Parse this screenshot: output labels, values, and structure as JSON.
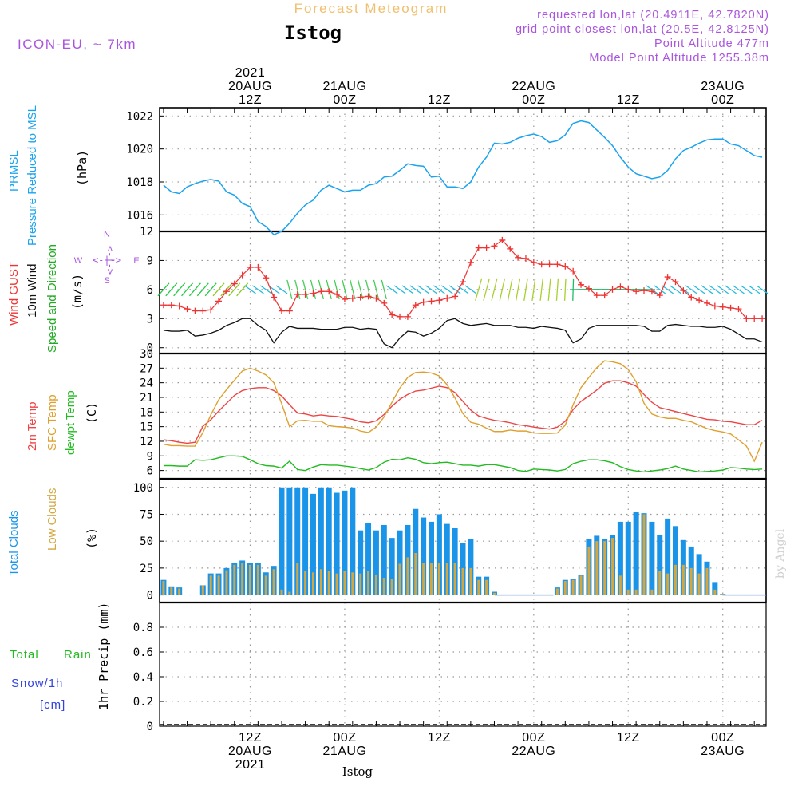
{
  "header": {
    "super_title": "Forecast Meteogram",
    "station": "Istog",
    "model": "ICON-EU, ~ 7km",
    "info_lines": [
      "requested lon,lat (20.4911E, 42.7820N)",
      "grid point closest lon,lat (20.5E, 42.8125N)",
      "Point Altitude 477m",
      "Model Point Altitude 1255.38m"
    ],
    "footer_station": "Istog",
    "credit": "by Angel"
  },
  "colors": {
    "pressure": "#1aa3ee",
    "gust": "#ee3333",
    "wind": "#111111",
    "wind_label_green": "#22aa22",
    "temp2m": "#ee4444",
    "sfc": "#e0a030",
    "dewpt": "#22bb22",
    "total_clouds": "#1a94e8",
    "low_clouds": "#d4a640",
    "rain_green": "#22bb22",
    "snow_blue": "#3344dd",
    "info_purple": "#aa55dd",
    "title_orange": "#f0c070"
  },
  "axis": {
    "top_labels": [
      {
        "h": 12,
        "lines": [
          "2021",
          "20AUG",
          "12Z"
        ]
      },
      {
        "h": 24,
        "lines": [
          "21AUG",
          "00Z"
        ]
      },
      {
        "h": 36,
        "lines": [
          "12Z"
        ]
      },
      {
        "h": 48,
        "lines": [
          "22AUG",
          "00Z"
        ]
      },
      {
        "h": 60,
        "lines": [
          "12Z"
        ]
      },
      {
        "h": 72,
        "lines": [
          "23AUG",
          "00Z"
        ]
      }
    ],
    "bottom_labels": [
      {
        "h": 12,
        "lines": [
          "12Z",
          "20AUG",
          "2021"
        ]
      },
      {
        "h": 24,
        "lines": [
          "00Z",
          "21AUG"
        ]
      },
      {
        "h": 36,
        "lines": [
          "12Z"
        ]
      },
      {
        "h": 48,
        "lines": [
          "00Z",
          "22AUG"
        ]
      },
      {
        "h": 60,
        "lines": [
          "12Z"
        ]
      },
      {
        "h": 72,
        "lines": [
          "00Z",
          "23AUG"
        ]
      }
    ]
  },
  "panels": {
    "pressure": {
      "label1": "PRMSL",
      "label2": "Pressure Reduced to MSL",
      "unit": "(hPa)",
      "ticks": [
        "1016",
        "1018",
        "1020",
        "1022"
      ]
    },
    "wind": {
      "label_gust": "Wind GUST",
      "label_wind": "10m Wind",
      "label_dir": "Speed and Direction",
      "unit": "(m/s)",
      "ticks": [
        "0",
        "3",
        "6",
        "9",
        "12"
      ],
      "compass": {
        "n": "N",
        "s": "S",
        "e": "E",
        "w": "W",
        "arrows": "<-|->"
      }
    },
    "temp": {
      "label_2m": "2m Temp",
      "label_sfc": "SFC Temp",
      "label_dew": "dewpt Temp",
      "unit": "(C)",
      "ticks": [
        "6",
        "9",
        "12",
        "15",
        "18",
        "21",
        "24",
        "27",
        "30"
      ]
    },
    "clouds": {
      "label_total": "Total Clouds",
      "label_low": "Low Clouds",
      "unit": "(%)",
      "ticks": [
        "0",
        "25",
        "50",
        "75",
        "100"
      ]
    },
    "precip": {
      "label_total": "Total",
      "label_rain": "Rain",
      "label_snow": "Snow/1h",
      "label_cm": "[cm]",
      "label_unit": "1hr Precip (mm)",
      "ticks": [
        "0",
        "0.2",
        "0.4",
        "0.6",
        "0.8"
      ]
    }
  },
  "chart_data": [
    {
      "type": "line",
      "title": "PRMSL Pressure Reduced to MSL",
      "ylabel": "hPa",
      "x_unit": "hours since 2021-08-20 00Z",
      "ylim": [
        1015,
        1022.5
      ],
      "x": [
        1,
        2,
        3,
        4,
        5,
        6,
        7,
        8,
        9,
        10,
        11,
        12,
        13,
        14,
        15,
        16,
        17,
        18,
        19,
        20,
        21,
        22,
        23,
        24,
        25,
        26,
        27,
        28,
        29,
        30,
        31,
        32,
        33,
        34,
        35,
        36,
        37,
        38,
        39,
        40,
        41,
        42,
        43,
        44,
        45,
        46,
        47,
        48,
        49,
        50,
        51,
        52,
        53,
        54,
        55,
        56,
        57,
        58,
        59,
        60,
        61,
        62,
        63,
        64,
        65,
        66,
        67,
        68,
        69,
        70,
        71,
        72,
        73,
        74,
        75,
        76,
        77
      ],
      "series": [
        {
          "name": "PRMSL",
          "values": [
            1017.8,
            1017.4,
            1017.3,
            1017.7,
            1017.9,
            1018.05,
            1018.15,
            1018.05,
            1017.4,
            1017.2,
            1016.7,
            1016.5,
            1015.6,
            1015.3,
            1014.8,
            1015.0,
            1015.5,
            1016.1,
            1016.6,
            1016.9,
            1017.5,
            1017.8,
            1017.6,
            1017.4,
            1017.5,
            1017.5,
            1017.8,
            1017.9,
            1018.3,
            1018.35,
            1018.7,
            1019.1,
            1019.0,
            1018.95,
            1018.3,
            1018.35,
            1017.7,
            1017.7,
            1017.6,
            1018.0,
            1018.9,
            1019.5,
            1020.35,
            1020.3,
            1020.4,
            1020.65,
            1020.8,
            1020.9,
            1020.75,
            1020.4,
            1020.5,
            1020.85,
            1021.55,
            1021.7,
            1021.6,
            1021.15,
            1020.7,
            1020.2,
            1019.5,
            1018.9,
            1018.5,
            1018.35,
            1018.2,
            1018.3,
            1018.7,
            1019.4,
            1019.9,
            1020.1,
            1020.35,
            1020.55,
            1020.6,
            1020.6,
            1020.3,
            1020.2,
            1019.9,
            1019.6,
            1019.5
          ]
        }
      ]
    },
    {
      "type": "line",
      "title": "Wind GUST / 10m Wind Speed and Direction",
      "ylabel": "m/s",
      "x_unit": "hours since 2021-08-20 00Z",
      "ylim": [
        0,
        12
      ],
      "x": [
        1,
        2,
        3,
        4,
        5,
        6,
        7,
        8,
        9,
        10,
        11,
        12,
        13,
        14,
        15,
        16,
        17,
        18,
        19,
        20,
        21,
        22,
        23,
        24,
        25,
        26,
        27,
        28,
        29,
        30,
        31,
        32,
        33,
        34,
        35,
        36,
        37,
        38,
        39,
        40,
        41,
        42,
        43,
        44,
        45,
        46,
        47,
        48,
        49,
        50,
        51,
        52,
        53,
        54,
        55,
        56,
        57,
        58,
        59,
        60,
        61,
        62,
        63,
        64,
        65,
        66,
        67,
        68,
        69,
        70,
        71,
        72,
        73,
        74,
        75,
        76,
        77
      ],
      "series": [
        {
          "name": "Wind GUST",
          "values": [
            4.4,
            4.4,
            4.3,
            4.0,
            3.8,
            3.8,
            3.9,
            4.8,
            5.8,
            6.6,
            7.5,
            8.3,
            8.3,
            7.2,
            5.2,
            3.8,
            3.8,
            5.5,
            5.5,
            5.6,
            5.8,
            5.8,
            5.5,
            5.0,
            5.1,
            5.2,
            5.3,
            5.1,
            4.6,
            3.4,
            3.2,
            3.2,
            4.4,
            4.7,
            4.8,
            4.9,
            5.1,
            5.3,
            6.8,
            8.8,
            10.3,
            10.3,
            10.5,
            11.1,
            10.2,
            9.3,
            9.2,
            8.8,
            8.6,
            8.6,
            8.6,
            8.4,
            7.9,
            6.5,
            6.1,
            5.4,
            5.4,
            6.0,
            6.3,
            6.0,
            5.8,
            5.9,
            5.8,
            5.4,
            7.3,
            6.8,
            5.9,
            5.2,
            4.9,
            4.6,
            4.3,
            4.2,
            4.1,
            4.0,
            3.0,
            3.0,
            3.0
          ]
        },
        {
          "name": "10m Wind",
          "values": [
            1.8,
            1.7,
            1.7,
            1.8,
            1.2,
            1.3,
            1.5,
            1.8,
            2.3,
            2.6,
            3.0,
            3.0,
            2.3,
            1.8,
            0.5,
            1.6,
            2.2,
            2.0,
            2.0,
            2.0,
            1.9,
            1.9,
            1.9,
            2.1,
            2.1,
            1.9,
            2.0,
            1.9,
            0.4,
            0.0,
            1.0,
            1.7,
            1.6,
            1.2,
            1.5,
            2.0,
            2.8,
            3.0,
            2.5,
            2.3,
            2.4,
            2.5,
            2.3,
            2.3,
            2.3,
            2.1,
            2.1,
            2.0,
            2.2,
            2.1,
            2.0,
            1.8,
            0.5,
            0.9,
            2.0,
            2.3,
            2.3,
            2.3,
            2.3,
            2.3,
            2.3,
            2.2,
            1.7,
            1.7,
            2.3,
            2.4,
            2.3,
            2.2,
            2.2,
            2.1,
            2.1,
            2.2,
            1.9,
            1.4,
            0.9,
            0.9,
            0.6
          ]
        }
      ]
    },
    {
      "type": "line",
      "title": "2m Temp / SFC Temp / dewpt Temp",
      "ylabel": "C",
      "x_unit": "hours since 2021-08-20 00Z",
      "ylim": [
        4.5,
        30
      ],
      "x": [
        1,
        2,
        3,
        4,
        5,
        6,
        7,
        8,
        9,
        10,
        11,
        12,
        13,
        14,
        15,
        16,
        17,
        18,
        19,
        20,
        21,
        22,
        23,
        24,
        25,
        26,
        27,
        28,
        29,
        30,
        31,
        32,
        33,
        34,
        35,
        36,
        37,
        38,
        39,
        40,
        41,
        42,
        43,
        44,
        45,
        46,
        47,
        48,
        49,
        50,
        51,
        52,
        53,
        54,
        55,
        56,
        57,
        58,
        59,
        60,
        61,
        62,
        63,
        64,
        65,
        66,
        67,
        68,
        69,
        70,
        71,
        72,
        73,
        74,
        75,
        76,
        77
      ],
      "series": [
        {
          "name": "2m Temp",
          "values": [
            12.3,
            12.1,
            11.8,
            11.6,
            11.8,
            15.1,
            16.4,
            18.2,
            19.8,
            21.4,
            22.4,
            22.8,
            23.0,
            23.0,
            22.4,
            21.3,
            19.5,
            17.8,
            17.6,
            17.2,
            17.4,
            17.2,
            17.1,
            16.8,
            16.5,
            16.0,
            15.8,
            16.2,
            17.5,
            19.2,
            20.6,
            21.6,
            22.3,
            22.5,
            22.9,
            23.3,
            23.0,
            22.0,
            20.2,
            18.4,
            17.2,
            16.7,
            16.3,
            16.1,
            15.8,
            15.4,
            15.2,
            14.9,
            14.7,
            14.5,
            14.9,
            16.1,
            18.5,
            20.2,
            21.3,
            22.5,
            23.9,
            24.4,
            24.4,
            24.0,
            23.3,
            21.6,
            20.0,
            18.9,
            18.5,
            18.1,
            17.7,
            17.3,
            16.9,
            16.5,
            16.4,
            16.1,
            16.0,
            15.7,
            15.4,
            15.4,
            16.3
          ]
        },
        {
          "name": "SFC Temp",
          "values": [
            11.4,
            11.1,
            11.1,
            11.0,
            11.0,
            13.8,
            17.4,
            20.5,
            22.6,
            24.5,
            26.4,
            27.0,
            26.4,
            25.6,
            24.0,
            19.7,
            15.0,
            16.2,
            16.3,
            16.1,
            16.1,
            15.2,
            15.0,
            14.9,
            14.7,
            14.1,
            13.8,
            14.9,
            17.0,
            20.0,
            22.9,
            25.1,
            26.1,
            26.2,
            26.0,
            25.4,
            23.6,
            20.9,
            17.7,
            15.9,
            15.5,
            14.7,
            14.0,
            14.0,
            14.3,
            14.1,
            14.1,
            13.7,
            13.6,
            13.6,
            13.7,
            15.3,
            19.5,
            23.0,
            25.1,
            27.1,
            28.5,
            28.3,
            27.9,
            26.7,
            24.2,
            19.8,
            17.6,
            17.0,
            16.7,
            16.7,
            16.3,
            16.0,
            15.3,
            14.6,
            14.2,
            13.9,
            13.5,
            12.3,
            11.0,
            7.9,
            11.8
          ]
        },
        {
          "name": "dewpt Temp",
          "values": [
            7.0,
            7.0,
            6.9,
            6.9,
            8.2,
            8.1,
            8.2,
            8.6,
            9.0,
            9.0,
            8.9,
            8.2,
            7.4,
            7.0,
            6.9,
            6.5,
            7.9,
            6.2,
            6.0,
            6.7,
            7.2,
            7.1,
            7.1,
            6.9,
            6.7,
            6.4,
            6.1,
            6.6,
            7.7,
            8.3,
            8.2,
            8.6,
            8.3,
            7.6,
            7.4,
            7.6,
            7.7,
            7.4,
            7.1,
            7.1,
            6.9,
            7.2,
            7.2,
            6.9,
            6.6,
            6.0,
            5.8,
            6.3,
            6.2,
            6.1,
            5.9,
            6.2,
            7.4,
            7.9,
            8.2,
            8.2,
            8.0,
            7.6,
            6.8,
            6.2,
            5.9,
            5.7,
            5.9,
            6.1,
            6.4,
            6.9,
            6.3,
            6.0,
            5.7,
            5.8,
            5.9,
            6.1,
            6.6,
            6.5,
            6.3,
            6.2,
            6.3
          ]
        }
      ]
    },
    {
      "type": "bar",
      "title": "Total Clouds / Low Clouds",
      "ylabel": "%",
      "x_unit": "hours since 2021-08-20 00Z",
      "ylim": [
        0,
        100
      ],
      "x": [
        1,
        2,
        3,
        4,
        5,
        6,
        7,
        8,
        9,
        10,
        11,
        12,
        13,
        14,
        15,
        16,
        17,
        18,
        19,
        20,
        21,
        22,
        23,
        24,
        25,
        26,
        27,
        28,
        29,
        30,
        31,
        32,
        33,
        34,
        35,
        36,
        37,
        38,
        39,
        40,
        41,
        42,
        43,
        44,
        45,
        46,
        47,
        48,
        49,
        50,
        51,
        52,
        53,
        54,
        55,
        56,
        57,
        58,
        59,
        60,
        61,
        62,
        63,
        64,
        65,
        66,
        67,
        68,
        69,
        70,
        71,
        72,
        73,
        74,
        75,
        76,
        77
      ],
      "series": [
        {
          "name": "Total Clouds",
          "values": [
            14,
            8,
            7,
            0,
            0,
            9,
            20,
            20,
            25,
            30,
            32,
            30,
            30,
            21,
            27,
            100,
            100,
            100,
            100,
            94,
            100,
            100,
            95,
            97,
            100,
            60,
            67,
            60,
            65,
            53,
            60,
            65,
            80,
            72,
            68,
            75,
            66,
            62,
            48,
            52,
            17,
            17,
            3,
            0,
            0,
            0,
            0,
            0,
            0,
            0,
            7,
            14,
            15,
            19,
            52,
            55,
            52,
            56,
            68,
            68,
            77,
            76,
            68,
            56,
            71,
            64,
            51,
            45,
            38,
            31,
            12,
            1,
            0,
            0,
            0,
            0,
            0
          ]
        },
        {
          "name": "Low Clouds",
          "values": [
            13,
            7,
            6,
            0,
            0,
            9,
            18,
            18,
            23,
            28,
            30,
            28,
            28,
            18,
            24,
            5,
            3,
            30,
            22,
            21,
            24,
            22,
            20,
            22,
            21,
            20,
            22,
            19,
            16,
            15,
            29,
            35,
            39,
            30,
            30,
            30,
            30,
            30,
            25,
            25,
            14,
            14,
            2,
            0,
            0,
            0,
            0,
            0,
            0,
            0,
            6,
            13,
            14,
            18,
            45,
            50,
            50,
            53,
            18,
            5,
            5,
            75,
            5,
            22,
            20,
            28,
            28,
            25,
            20,
            25,
            5,
            1,
            0,
            0,
            0,
            0,
            0
          ]
        }
      ]
    },
    {
      "type": "bar",
      "title": "1hr Precip",
      "ylabel": "1hr Precip (mm)",
      "x_unit": "hours since 2021-08-20 00Z",
      "ylim": [
        0,
        1.0
      ],
      "series": [
        {
          "name": "Total Rain",
          "values": []
        },
        {
          "name": "Snow/1h",
          "values": []
        }
      ]
    }
  ]
}
